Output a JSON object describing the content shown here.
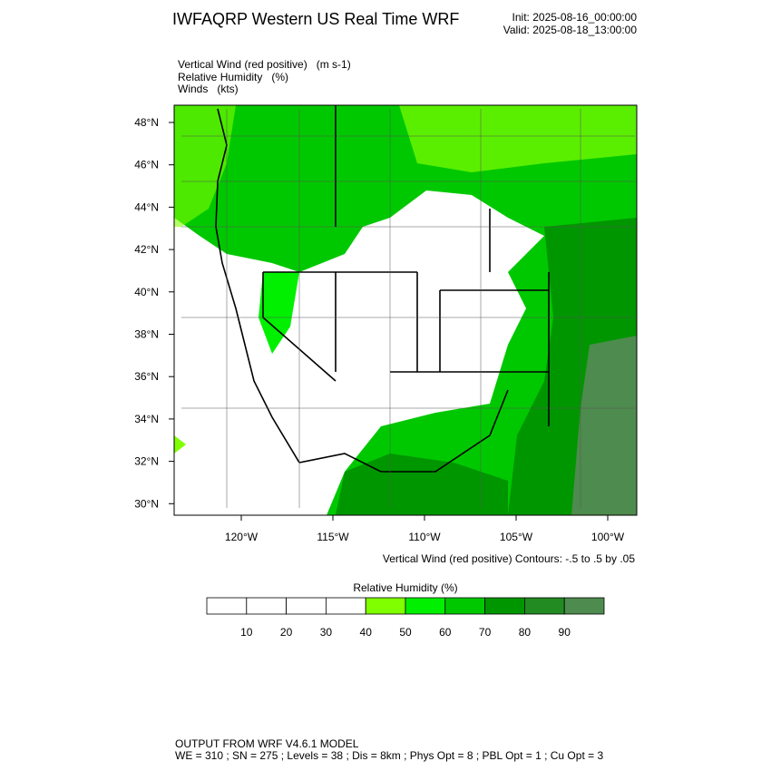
{
  "header": {
    "title": "IWFAQRP Western US Real Time WRF",
    "init": "Init: 2025-08-16_00:00:00",
    "valid": "Valid: 2025-08-18_13:00:00"
  },
  "fields": [
    "Vertical Wind (red positive)   (m s-1)",
    "Relative Humidity   (%)",
    "Winds   (kts)"
  ],
  "map": {
    "lat_labels": [
      "48°N",
      "46°N",
      "44°N",
      "42°N",
      "40°N",
      "38°N",
      "36°N",
      "34°N",
      "32°N",
      "30°N"
    ],
    "lon_labels": [
      "120°W",
      "115°W",
      "110°W",
      "105°W",
      "100°W"
    ],
    "contour_note": "Vertical Wind (red positive) Contours: -.5 to .5 by .05"
  },
  "colorbar": {
    "title": "Relative Humidity  (%)",
    "labels": [
      "10",
      "20",
      "30",
      "40",
      "50",
      "60",
      "70",
      "80",
      "90"
    ],
    "colors": [
      "#ffffff",
      "#ffffff",
      "#ffffff",
      "#ffffff",
      "#80ff00",
      "#00f000",
      "#00c800",
      "#009600",
      "#228b22",
      "#4e8b4e"
    ]
  },
  "footer": {
    "line1": "OUTPUT FROM WRF V4.6.1 MODEL",
    "line2": "WE = 310 ; SN = 275 ; Levels = 38 ; Dis = 8km ; Phys Opt = 8 ; PBL Opt = 1 ; Cu Opt = 3"
  }
}
